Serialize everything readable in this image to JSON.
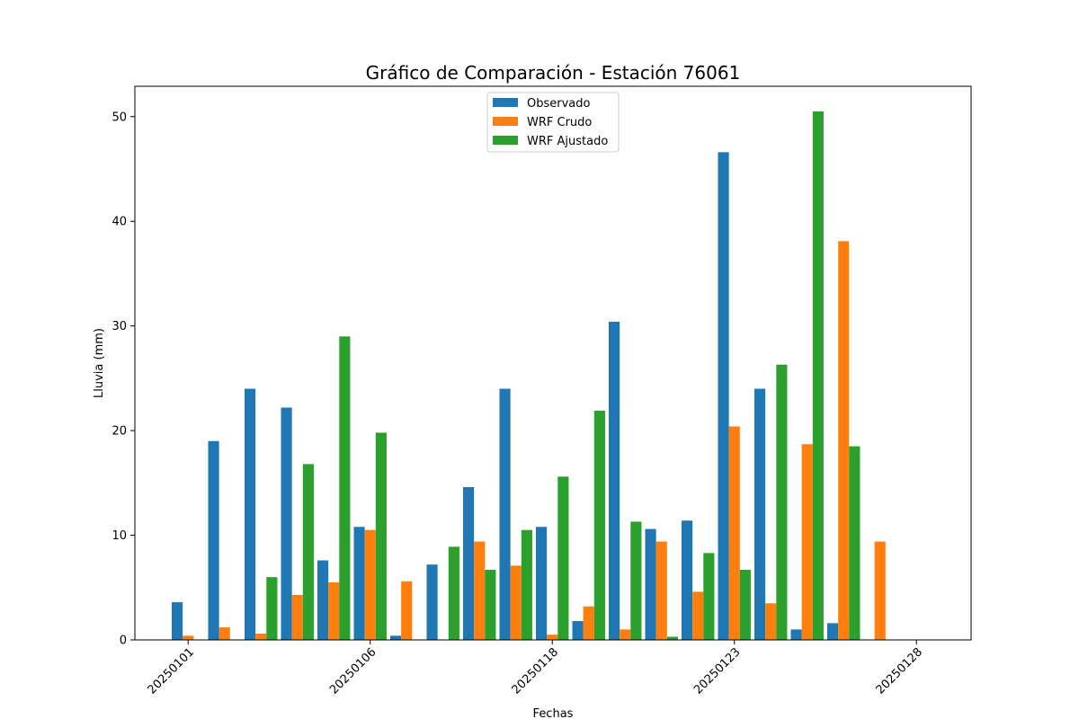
{
  "chart_data": {
    "type": "bar",
    "title": "Gráfico de Comparación - Estación 76061",
    "xlabel": "Fechas",
    "ylabel": "Lluvia (mm)",
    "ylim": [
      0,
      52.9
    ],
    "yticks": [
      0,
      10,
      20,
      30,
      40,
      50
    ],
    "xtick_labels": [
      {
        "index": 0,
        "label": "20250101"
      },
      {
        "index": 5,
        "label": "20250106"
      },
      {
        "index": 10,
        "label": "20250118"
      },
      {
        "index": 15,
        "label": "20250123"
      },
      {
        "index": 20,
        "label": "20250128"
      }
    ],
    "legend": "upper center",
    "grid": false,
    "series": [
      {
        "name": "Observado",
        "color": "#1f77b4",
        "values": [
          3.6,
          19.0,
          24.0,
          22.2,
          7.6,
          10.8,
          0.4,
          7.2,
          14.6,
          24.0,
          10.8,
          1.8,
          30.4,
          10.6,
          11.4,
          46.6,
          24.0,
          1.0,
          1.6,
          0.0
        ]
      },
      {
        "name": "WRF Crudo",
        "color": "#ff7f0e",
        "values": [
          0.4,
          1.2,
          0.6,
          4.3,
          5.5,
          10.5,
          5.6,
          0.0,
          9.4,
          7.1,
          0.5,
          3.2,
          1.0,
          9.4,
          4.6,
          20.4,
          3.5,
          18.7,
          38.1,
          9.4
        ]
      },
      {
        "name": "WRF Ajustado",
        "color": "#2ca02c",
        "values": [
          0.0,
          0.0,
          6.0,
          16.8,
          29.0,
          19.8,
          0.0,
          8.9,
          6.7,
          10.5,
          15.6,
          21.9,
          11.3,
          0.3,
          8.3,
          6.7,
          26.3,
          50.5,
          18.5,
          0.0
        ]
      }
    ]
  }
}
